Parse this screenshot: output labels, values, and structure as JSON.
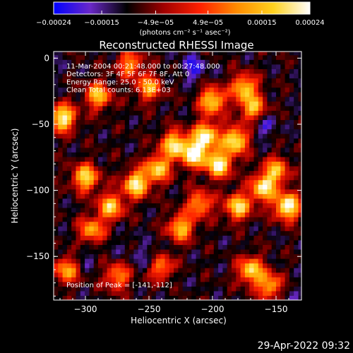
{
  "chart_data": {
    "type": "heatmap",
    "title": "Reconstructed RHESSI Image",
    "xlabel": "Heliocentric X (arcsec)",
    "ylabel": "Heliocentric Y (arcsec)",
    "xlim": [
      -325,
      -130
    ],
    "ylim": [
      -183,
      5
    ],
    "x_ticks": [
      -300,
      -250,
      -200,
      -150
    ],
    "x_tick_labels": [
      "−300",
      "−250",
      "−200",
      "−150"
    ],
    "y_ticks": [
      0,
      -50,
      -100,
      -150
    ],
    "y_tick_labels": [
      "0",
      "−50",
      "−100",
      "−150"
    ],
    "colorbar": {
      "range": [
        -0.00024,
        0.00024
      ],
      "ticks": [
        -0.00024,
        -0.00015,
        -4.9e-05,
        4.9e-05,
        0.00015,
        0.00024
      ],
      "tick_labels": [
        "−0.00024",
        "−0.00015",
        "−4.9e−05",
        "4.9e−05",
        "0.00015",
        "0.00024"
      ],
      "units_label": "(photons cm⁻² s⁻¹ asec⁻²)",
      "colors": [
        "#0000ff",
        "#6a28c8",
        "#000000",
        "#a00000",
        "#ff2000",
        "#ff8c00",
        "#ffd21e",
        "#ffffff"
      ]
    },
    "annotations": [
      "11-Mar-2004 00:21:48.000 to 00:27:48.000",
      "Detectors: 3F 4F 5F 6F 7F 8F, Att 0",
      "Energy Range: 25.0 - 50.0 keV",
      "Clean     Total counts: 6.13E+03"
    ],
    "peak_label": "Position of Peak = [-141,-112]",
    "peak_position": [
      -141,
      -112
    ],
    "bright_regions": [
      {
        "x": -318,
        "y": -45,
        "v": 0.00022
      },
      {
        "x": -300,
        "y": -90,
        "v": 0.00018
      },
      {
        "x": -290,
        "y": -28,
        "v": 0.00015
      },
      {
        "x": -280,
        "y": -112,
        "v": 0.00016
      },
      {
        "x": -295,
        "y": -130,
        "v": 0.00012
      },
      {
        "x": -275,
        "y": -165,
        "v": 0.0001
      },
      {
        "x": -260,
        "y": -95,
        "v": 0.00021
      },
      {
        "x": -243,
        "y": -83,
        "v": 0.00017
      },
      {
        "x": -230,
        "y": -65,
        "v": 0.00019
      },
      {
        "x": -214,
        "y": -72,
        "v": 0.00023
      },
      {
        "x": -205,
        "y": -58,
        "v": 0.0002
      },
      {
        "x": -195,
        "y": -80,
        "v": 0.00022
      },
      {
        "x": -182,
        "y": -62,
        "v": 0.00021
      },
      {
        "x": -200,
        "y": -32,
        "v": 0.00018
      },
      {
        "x": -175,
        "y": -22,
        "v": 0.00016
      },
      {
        "x": -168,
        "y": -38,
        "v": 0.00014
      },
      {
        "x": -250,
        "y": -22,
        "v": 0.00012
      },
      {
        "x": -225,
        "y": -128,
        "v": 0.00015
      },
      {
        "x": -210,
        "y": -110,
        "v": 0.00012
      },
      {
        "x": -180,
        "y": -112,
        "v": 0.00018
      },
      {
        "x": -160,
        "y": -98,
        "v": 0.00019
      },
      {
        "x": -141,
        "y": -112,
        "v": 0.00024
      },
      {
        "x": -150,
        "y": -85,
        "v": 0.00013
      },
      {
        "x": -170,
        "y": -160,
        "v": 0.00017
      },
      {
        "x": -155,
        "y": -172,
        "v": 0.00013
      },
      {
        "x": -240,
        "y": -158,
        "v": 0.00011
      },
      {
        "x": -315,
        "y": -160,
        "v": 0.00012
      },
      {
        "x": -265,
        "y": -4,
        "v": 0.0001
      }
    ],
    "dark_regions": [
      {
        "x": -215,
        "y": -7,
        "v": -0.0002
      },
      {
        "x": -160,
        "y": -50,
        "v": -0.00018
      },
      {
        "x": -300,
        "y": -150,
        "v": -0.00014
      },
      {
        "x": -250,
        "y": -150,
        "v": -0.00016
      },
      {
        "x": -270,
        "y": -140,
        "v": -0.00012
      },
      {
        "x": -140,
        "y": -178,
        "v": -0.00013
      },
      {
        "x": -190,
        "y": -145,
        "v": -0.0001
      },
      {
        "x": -320,
        "y": -5,
        "v": -0.00011
      },
      {
        "x": -230,
        "y": -165,
        "v": -0.00012
      }
    ],
    "grid": false
  },
  "timestamp": "29-Apr-2022 09:32"
}
